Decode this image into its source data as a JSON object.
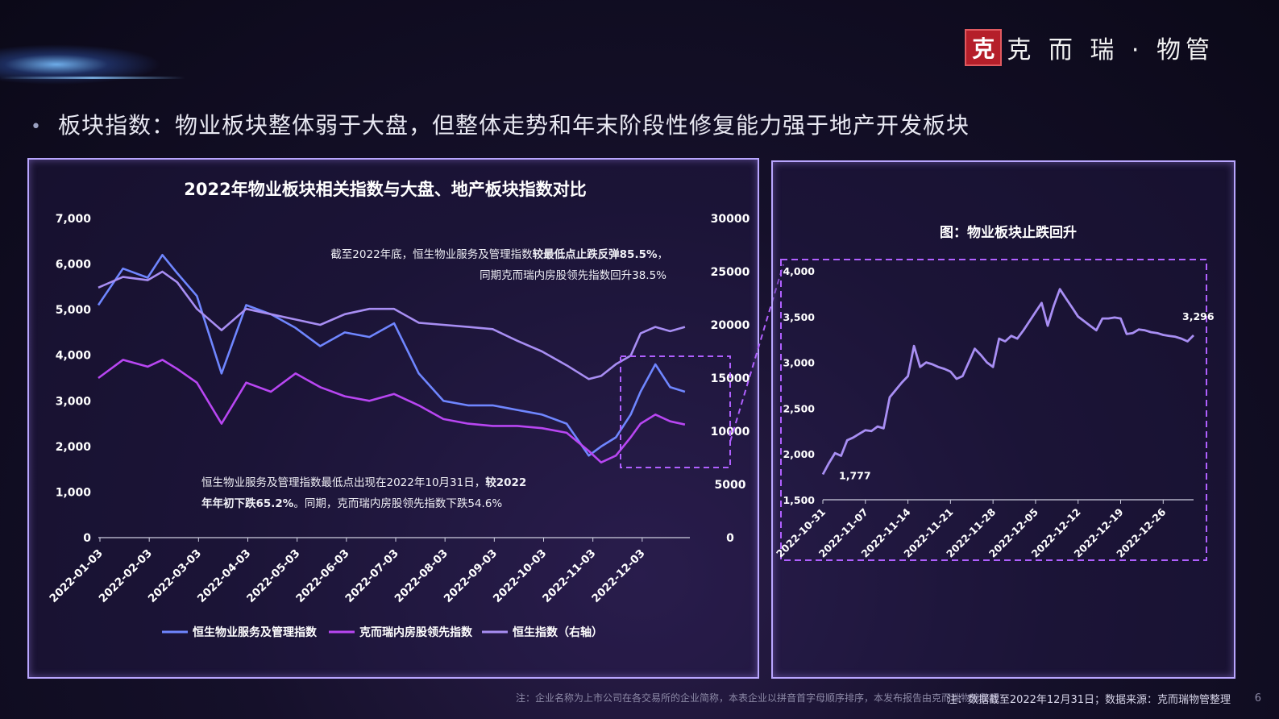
{
  "brand": {
    "seal_text": "克",
    "name": "克 而 瑞 · 物管"
  },
  "headline": "板块指数：物业板块整体弱于大盘，但整体走势和年末阶段性修复能力强于地产开发板块",
  "footer": {
    "disclaimer": "注：企业名称为上市公司在各交易所的企业简称，本表企业以拼音首字母顺序排序，本发布报告由克而瑞物管整理",
    "note": "注：数据截至2022年12月31日；数据来源：克而瑞物管整理",
    "page": "6"
  },
  "colors": {
    "prop_index": "#6f86ff",
    "cric_index": "#b846f2",
    "hsi": "#a88ef3",
    "panel_border": "#b9a6ff",
    "dash": "#b060ff"
  },
  "chart_data": [
    {
      "type": "line",
      "title": "2022年物业板块相关指数与大盘、地产板块指数对比",
      "x_ticks": [
        "2022-01-03",
        "2022-02-03",
        "2022-03-03",
        "2022-04-03",
        "2022-05-03",
        "2022-06-03",
        "2022-07-03",
        "2022-08-03",
        "2022-09-03",
        "2022-10-03",
        "2022-11-03",
        "2022-12-03"
      ],
      "y_left_ticks": [
        "7,000",
        "6,000",
        "5,000",
        "4,000",
        "3,000",
        "2,000",
        "1,000",
        "0"
      ],
      "y_right_ticks": [
        "30000",
        "25000",
        "20000",
        "15000",
        "10000",
        "5000",
        "0"
      ],
      "ylim_left": [
        0,
        7000
      ],
      "ylim_right": [
        0,
        30000
      ],
      "x_months": [
        0,
        0.5,
        1,
        1.3,
        1.6,
        2,
        2.5,
        3,
        3.5,
        4,
        4.5,
        5,
        5.5,
        6,
        6.5,
        7,
        7.5,
        8,
        8.5,
        9,
        9.5,
        9.95,
        10.2,
        10.5,
        10.8,
        11,
        11.3,
        11.6,
        11.9
      ],
      "series": [
        {
          "name": "恒生物业服务及管理指数",
          "axis": "left",
          "values": [
            5100,
            5900,
            5700,
            6200,
            5800,
            5300,
            3600,
            5100,
            4900,
            4600,
            4200,
            4500,
            4400,
            4700,
            3600,
            3000,
            2900,
            2900,
            2800,
            2700,
            2500,
            1800,
            2000,
            2200,
            2700,
            3200,
            3800,
            3300,
            3200
          ]
        },
        {
          "name": "克而瑞内房股领先指数",
          "axis": "left",
          "values": [
            3500,
            3900,
            3750,
            3900,
            3700,
            3400,
            2500,
            3400,
            3200,
            3600,
            3300,
            3100,
            3000,
            3150,
            2900,
            2600,
            2500,
            2450,
            2450,
            2400,
            2300,
            1900,
            1650,
            1800,
            2200,
            2500,
            2700,
            2550,
            2480
          ]
        },
        {
          "name": "恒生指数（右轴）",
          "axis": "right",
          "values": [
            23500,
            24500,
            24200,
            25000,
            24000,
            21500,
            19500,
            21500,
            21000,
            20500,
            20000,
            21000,
            21500,
            21500,
            20200,
            20000,
            19800,
            19600,
            18500,
            17500,
            16200,
            14900,
            15200,
            16300,
            17100,
            19200,
            19800,
            19400,
            19800
          ]
        }
      ],
      "annotations": {
        "top_line1_plain": "截至2022年底，恒生物业服务及管理指数",
        "top_line1_bold": "较最低点止跌反弹85.5%",
        "top_line1_end": "，",
        "top_line2": "同期克而瑞内房股领先指数回升38.5%",
        "bottom_line1_plain": "恒生物业服务及管理指数最低点出现在2022年10月31日，",
        "bottom_line1_bold": "较2022",
        "bottom_line2_bold": "年年初下跌65.2%",
        "bottom_line2_plain": "。同期，克而瑞内房股领先指数下跌54.6%"
      }
    },
    {
      "type": "line",
      "title": "图：物业板块止跌回升",
      "x_ticks": [
        "2022-10-31",
        "2022-11-07",
        "2022-11-14",
        "2022-11-21",
        "2022-11-28",
        "2022-12-05",
        "2022-12-12",
        "2022-12-19",
        "2022-12-26"
      ],
      "y_ticks": [
        "4,000",
        "3,500",
        "3,000",
        "2,500",
        "2,000",
        "1,500"
      ],
      "ylim": [
        1500,
        4000
      ],
      "x_days": [
        0,
        1,
        2,
        3,
        4,
        5,
        6,
        7,
        8,
        9,
        10,
        11,
        12,
        13,
        14,
        15,
        16,
        17,
        18,
        19,
        20,
        21,
        22,
        23,
        24,
        25,
        26,
        27,
        28,
        29,
        30,
        31,
        32,
        33,
        34,
        35,
        36,
        37,
        38,
        39,
        40,
        41,
        42,
        43,
        44,
        45,
        46,
        47,
        48,
        49,
        50,
        51,
        52,
        53,
        54,
        55,
        56,
        57,
        58,
        59,
        60,
        61
      ],
      "series": [
        {
          "name": "恒生物业服务及管理指数",
          "values": [
            1777,
            1900,
            2010,
            1980,
            2150,
            2180,
            2220,
            2260,
            2250,
            2300,
            2280,
            2620,
            2700,
            2780,
            2850,
            3180,
            2950,
            3000,
            2980,
            2950,
            2930,
            2900,
            2820,
            2850,
            3000,
            3150,
            3080,
            3000,
            2950,
            3260,
            3230,
            3290,
            3260,
            3350,
            3450,
            3550,
            3650,
            3400,
            3620,
            3800,
            3700,
            3600,
            3500,
            3450,
            3400,
            3350,
            3480,
            3480,
            3490,
            3480,
            3310,
            3320,
            3360,
            3350,
            3330,
            3320,
            3300,
            3290,
            3280,
            3260,
            3230,
            3296
          ]
        }
      ],
      "labels": {
        "min": "1,777",
        "last": "3,296"
      }
    }
  ]
}
